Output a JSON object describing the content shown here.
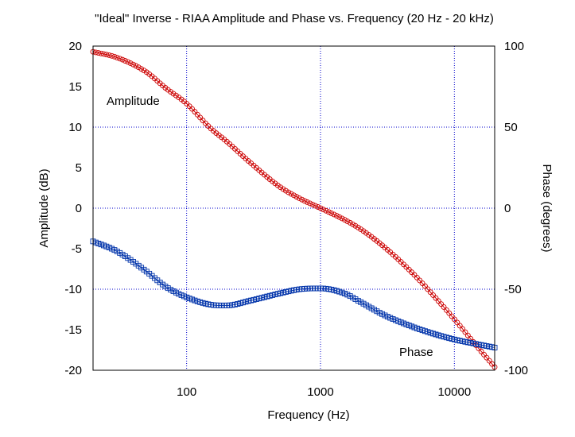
{
  "chart_data": {
    "type": "line",
    "title": "\"Ideal\" Inverse - RIAA Amplitude and Phase vs. Frequency (20 Hz - 20 kHz)",
    "xlabel": "Frequency (Hz)",
    "ylabel_left": "Amplitude (dB)",
    "ylabel_right": "Phase (degrees)",
    "x_scale": "log",
    "xlim": [
      20,
      20000
    ],
    "ylim_left": [
      -20,
      20
    ],
    "ylim_right": [
      -100,
      100
    ],
    "x_ticks": [
      100,
      1000,
      10000
    ],
    "x_tick_labels": [
      "100",
      "1000",
      "10000"
    ],
    "y_left_ticks": [
      20,
      15,
      10,
      5,
      0,
      -5,
      -10,
      -15,
      -20
    ],
    "y_left_tick_labels": [
      "20",
      "15",
      "10",
      "5",
      "0",
      "-5",
      "-10",
      "-15",
      "-20"
    ],
    "y_right_ticks": [
      100,
      50,
      0,
      -50,
      -100
    ],
    "y_right_tick_labels": [
      "100",
      "50",
      "0",
      "-50",
      "-100"
    ],
    "grid": true,
    "series": [
      {
        "name": "Amplitude",
        "axis": "left",
        "marker": "circle",
        "color": "#cc0000",
        "x": [
          20,
          30,
          50,
          70,
          100,
          150,
          200,
          300,
          500,
          700,
          1000,
          1500,
          2000,
          3000,
          5000,
          7000,
          10000,
          15000,
          20000
        ],
        "values": [
          19.3,
          18.6,
          16.8,
          14.8,
          12.9,
          9.9,
          8.2,
          5.6,
          2.6,
          1.2,
          0.0,
          -1.4,
          -2.6,
          -4.8,
          -8.2,
          -10.8,
          -13.7,
          -17.2,
          -19.6
        ]
      },
      {
        "name": "Phase",
        "axis": "right",
        "marker": "square",
        "color": "#0033aa",
        "x": [
          20,
          30,
          50,
          70,
          100,
          150,
          200,
          300,
          500,
          700,
          1000,
          1500,
          2000,
          3000,
          5000,
          7000,
          10000,
          15000,
          20000
        ],
        "values": [
          -20.5,
          -26.5,
          -39.0,
          -48.5,
          -55.0,
          -59.5,
          -60.0,
          -57.0,
          -52.5,
          -50.0,
          -49.5,
          -52.5,
          -58.0,
          -66.0,
          -73.5,
          -77.5,
          -81.0,
          -84.0,
          -86.0
        ]
      }
    ],
    "annotations": [
      "Amplitude",
      "Phase"
    ]
  }
}
